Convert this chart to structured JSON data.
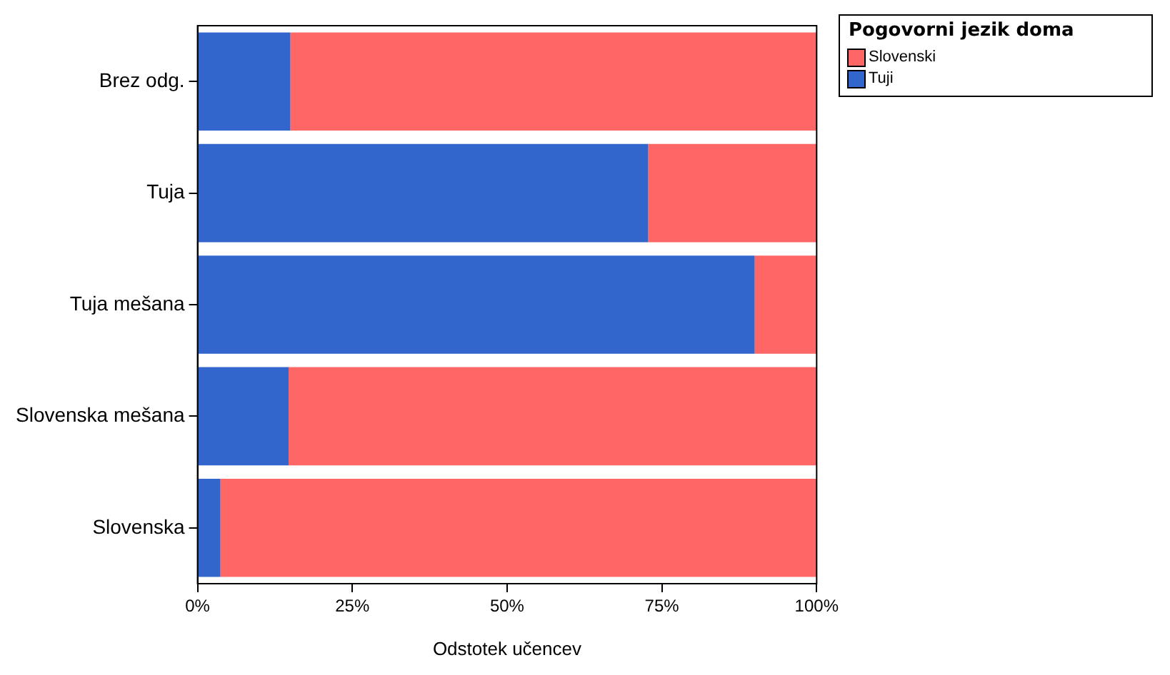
{
  "chart_data": {
    "type": "bar",
    "orientation": "horizontal",
    "stacked": true,
    "xlabel": "Odstotek učencev",
    "legend_title": "Pogovorni jezik doma",
    "legend": "top right",
    "grid": false,
    "categories": [
      "Brez odg.",
      "Tuja",
      "Tuja mešana",
      "Slovenska mešana",
      "Slovenska"
    ],
    "xlim": [
      0,
      100
    ],
    "xticks": [
      {
        "value": 0,
        "label": "0%"
      },
      {
        "value": 25,
        "label": "25%"
      },
      {
        "value": 50,
        "label": "50%"
      },
      {
        "value": 75,
        "label": "75%"
      },
      {
        "value": 100,
        "label": "100%"
      }
    ],
    "series": [
      {
        "name": "Tuji",
        "color": "#3366cc",
        "values": [
          15,
          72.8,
          90,
          14.7,
          3.7
        ]
      },
      {
        "name": "Slovenski",
        "color": "#ff6666",
        "values": [
          85,
          27.2,
          10,
          85.3,
          96.3
        ]
      }
    ]
  }
}
